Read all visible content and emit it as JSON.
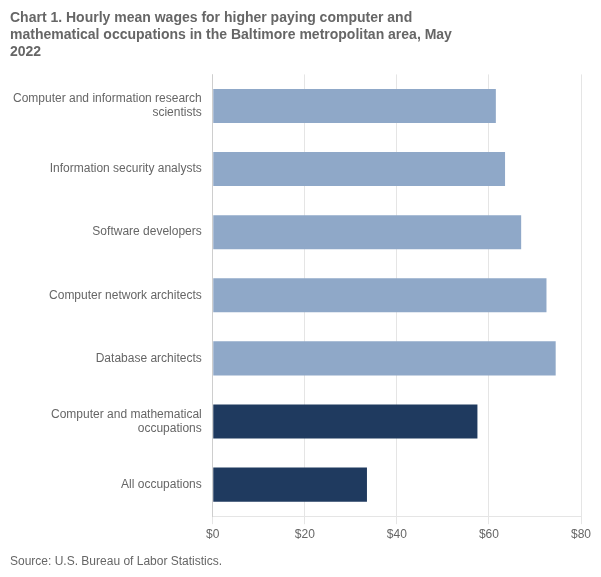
{
  "chart_data": {
    "type": "bar",
    "orientation": "horizontal",
    "title": "Chart 1. Hourly mean wages for higher paying computer and\nmathematical occupations in the Baltimore metropolitan area, May\n2022",
    "categories": [
      "Computer and information research\nscientists",
      "Information security analysts",
      "Software developers",
      "Computer network architects",
      "Database architects",
      "Computer and mathematical\noccupations",
      "All occupations"
    ],
    "values": [
      61.5,
      63.5,
      67.0,
      72.5,
      74.5,
      57.5,
      33.5
    ],
    "colors": [
      "#8fa8c8",
      "#8fa8c8",
      "#8fa8c8",
      "#8fa8c8",
      "#8fa8c8",
      "#1f3a5f",
      "#1f3a5f"
    ],
    "xlim": [
      0,
      80
    ],
    "xticks": [
      {
        "value": 0,
        "label": "$0"
      },
      {
        "value": 20,
        "label": "$20"
      },
      {
        "value": 40,
        "label": "$40"
      },
      {
        "value": 60,
        "label": "$60"
      },
      {
        "value": 80,
        "label": "$80"
      }
    ],
    "grid": true,
    "annotations": [
      "Source: U.S. Bureau of Labor Statistics."
    ]
  }
}
